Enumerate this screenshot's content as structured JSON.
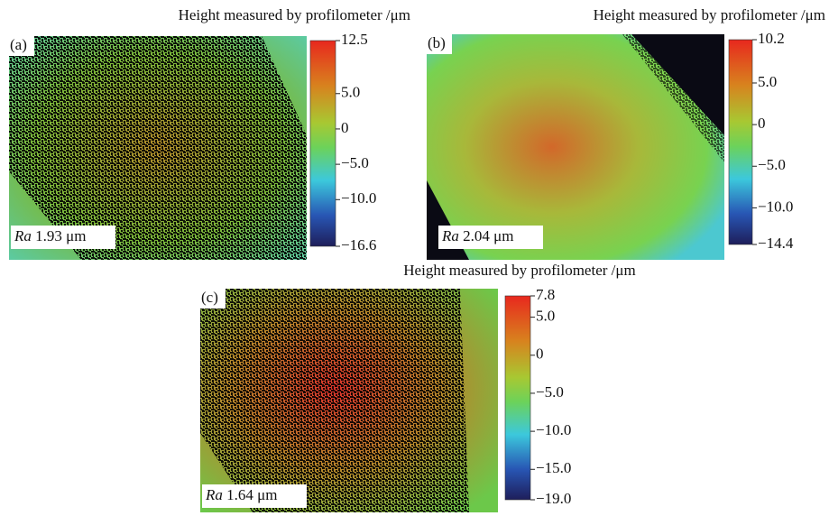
{
  "panels": [
    {
      "label": "(a)",
      "title": "Height measured by profilometer /μm",
      "roughness_symbol": "Ra",
      "roughness_value": "1.93 μm",
      "colorbar": {
        "lim": [
          -16.6,
          12.5
        ],
        "ticks": [
          {
            "value": 12.5,
            "label": "12.5"
          },
          {
            "value": 5,
            "label": "5.0"
          },
          0,
          {
            "value": -5,
            "label": "−5.0"
          },
          {
            "value": -10,
            "label": "−10.0"
          },
          {
            "value": -16.6,
            "label": "−16.6"
          }
        ]
      }
    },
    {
      "label": "(b)",
      "title": "Height measured by profilometer /μm",
      "roughness_symbol": "Ra",
      "roughness_value": "2.04 μm",
      "colorbar": {
        "lim": [
          -14.4,
          10.2
        ],
        "ticks": [
          {
            "value": 10.2,
            "label": "10.2"
          },
          {
            "value": 5,
            "label": "5.0"
          },
          0,
          {
            "value": -5,
            "label": "−5.0"
          },
          {
            "value": -10,
            "label": "−10.0"
          },
          {
            "value": -14.4,
            "label": "−14.4"
          }
        ]
      }
    },
    {
      "label": "(c)",
      "title": "Height measured by profilometer /μm",
      "roughness_symbol": "Ra",
      "roughness_value": "1.64 μm",
      "colorbar": {
        "lim": [
          -19,
          7.8
        ],
        "ticks": [
          {
            "value": 7.8,
            "label": "7.8"
          },
          {
            "value": 5,
            "label": "5.0"
          },
          0,
          {
            "value": -5,
            "label": "−5.0"
          },
          {
            "value": -10,
            "label": "−10.0"
          },
          {
            "value": -15,
            "label": "−15.0"
          },
          {
            "value": -19,
            "label": "−19.0"
          }
        ]
      }
    }
  ]
}
